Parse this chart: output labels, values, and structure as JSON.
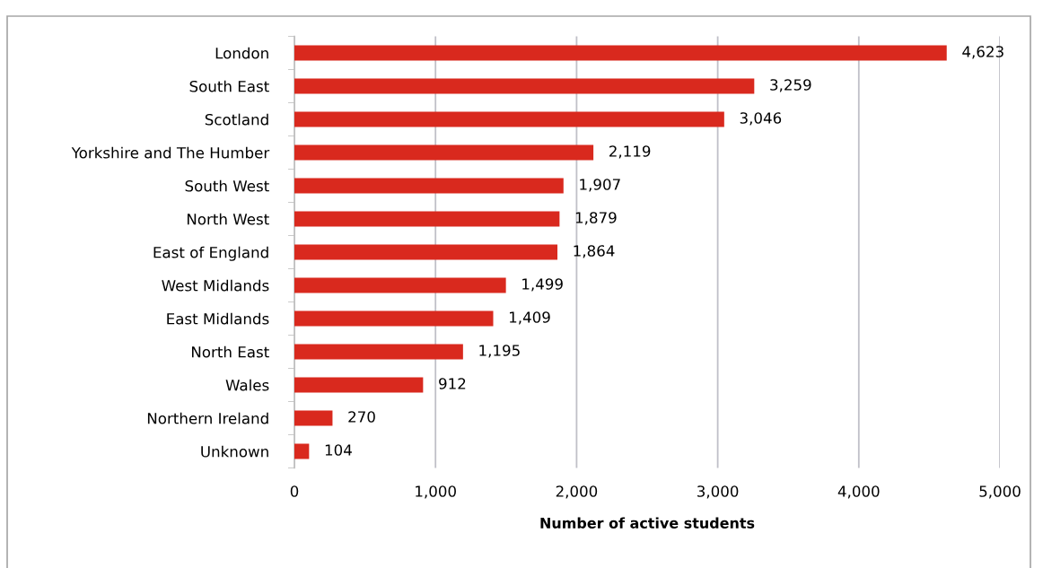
{
  "chart_data": {
    "type": "bar",
    "orientation": "horizontal",
    "xlabel": "Number of active students",
    "categories": [
      "London",
      "South East",
      "Scotland",
      "Yorkshire and The Humber",
      "South West",
      "North West",
      "East of England",
      "West Midlands",
      "East Midlands",
      "North East",
      "Wales",
      "Northern Ireland",
      "Unknown"
    ],
    "values": [
      4623,
      3259,
      3046,
      2119,
      1907,
      1879,
      1864,
      1499,
      1409,
      1195,
      912,
      270,
      104
    ],
    "value_labels": [
      "4,623",
      "3,259",
      "3,046",
      "2,119",
      "1,907",
      "1,879",
      "1,864",
      "1,499",
      "1,409",
      "1,195",
      "912",
      "270",
      "104"
    ],
    "color": "#d9291e",
    "xlim": [
      0,
      5000
    ],
    "xticks": [
      0,
      {
        "value": 1000,
        "label": "1,000"
      },
      {
        "value": 2000,
        "label": "2,000"
      },
      {
        "value": 3000,
        "label": "3,000"
      },
      {
        "value": 4000,
        "label": "4,000"
      },
      {
        "value": 5000,
        "label": "5,000"
      }
    ],
    "grid": "x",
    "legend": false
  }
}
